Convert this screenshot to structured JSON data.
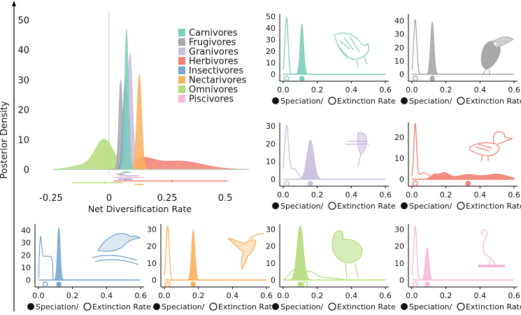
{
  "figure": {
    "ylabel": "Posterior Density",
    "main_xlabel": "Net Diversification Rate",
    "panel_legend": {
      "speciation": "Speciation/",
      "extinction": "Extinction Rate"
    }
  },
  "chart_data": [
    {
      "id": "main",
      "type": "area",
      "xlabel": "Net Diversification Rate",
      "ylabel": "Posterior Density",
      "xlim": [
        -0.28,
        0.62
      ],
      "ylim": [
        0,
        52
      ],
      "xticks": [
        -0.25,
        0,
        0.25,
        0.5
      ],
      "xtick_labels": [
        "-0.25",
        "0",
        "0.25",
        "0.5"
      ],
      "yticks": [
        0,
        10,
        20,
        30,
        40,
        50
      ],
      "legend_position": "top-right",
      "series": [
        {
          "name": "Carnivores",
          "color": "#7fcdbb",
          "peak_x": 0.075,
          "peak_density": 47,
          "interval": [
            0.055,
            0.095
          ]
        },
        {
          "name": "Frugivores",
          "color": "#a8a8a8",
          "peak_x": 0.05,
          "peak_density": 30,
          "interval": [
            0.03,
            0.07
          ]
        },
        {
          "name": "Granivores",
          "color": "#c8bedd",
          "peak_x": 0.09,
          "peak_density": 39,
          "interval": [
            0.04,
            0.13
          ]
        },
        {
          "name": "Herbivores",
          "color": "#f27f73",
          "peak_x": 0.27,
          "peak_density": 3,
          "interval": [
            0.02,
            0.51
          ]
        },
        {
          "name": "Insectivores",
          "color": "#7aa7cf",
          "peak_x": 0.07,
          "peak_density": 31,
          "interval": [
            0.04,
            0.1
          ]
        },
        {
          "name": "Nectarivores",
          "color": "#f9b25e",
          "peak_x": 0.13,
          "peak_density": 32,
          "interval": [
            0.11,
            0.15
          ]
        },
        {
          "name": "Omnivores",
          "color": "#b5dd7d",
          "peak_x": -0.02,
          "peak_density": 10,
          "interval": [
            -0.16,
            0.06
          ]
        },
        {
          "name": "Piscivores",
          "color": "#f5b8d8",
          "peak_x": 0.08,
          "peak_density": 22,
          "interval": [
            0.02,
            0.15
          ]
        }
      ]
    },
    {
      "id": "carnivores",
      "type": "area",
      "xlim": [
        -0.02,
        0.62
      ],
      "ylim": [
        0,
        52
      ],
      "xticks": [
        0,
        0.2,
        0.4,
        0.6
      ],
      "xtick_labels": [
        "0.0",
        "0.2",
        "0.4",
        "0.6"
      ],
      "yticks": [
        0,
        10,
        20,
        30,
        40,
        50
      ],
      "ytick_labels": [
        "0",
        "10",
        "20",
        "30",
        "40",
        "50"
      ],
      "color": "#7fcdbb",
      "extinction": {
        "mean": 0.02,
        "peak": 49
      },
      "speciation": {
        "mean": 0.11,
        "peak": 43
      }
    },
    {
      "id": "frugivores",
      "type": "area",
      "xlim": [
        -0.02,
        0.62
      ],
      "ylim": [
        0,
        45
      ],
      "xticks": [
        0,
        0.2,
        0.4,
        0.6
      ],
      "xtick_labels": [
        "0.0",
        "0.2",
        "0.4",
        "0.6"
      ],
      "yticks": [
        0,
        10,
        20,
        30,
        40
      ],
      "ytick_labels": [
        "0",
        "10",
        "20",
        "30",
        "40"
      ],
      "color": "#a8a8a8",
      "extinction": {
        "mean": 0.02,
        "peak": 41
      },
      "speciation": {
        "mean": 0.12,
        "peak": 39
      }
    },
    {
      "id": "granivores",
      "type": "area",
      "xlim": [
        -0.02,
        0.62
      ],
      "ylim": [
        0,
        32
      ],
      "xticks": [
        0,
        0.2,
        0.4,
        0.6
      ],
      "xtick_labels": [
        "0.0",
        "0.2",
        "0.4",
        "0.6"
      ],
      "yticks": [
        0,
        10,
        20,
        30
      ],
      "ytick_labels": [
        "0",
        "10",
        "20",
        "30"
      ],
      "color": "#c8bedd",
      "extinction": {
        "mean": 0.02,
        "peak": 29
      },
      "speciation": {
        "mean": 0.16,
        "peak": 22
      }
    },
    {
      "id": "herbivores",
      "type": "area",
      "xlim": [
        -0.02,
        0.62
      ],
      "ylim": [
        0,
        27
      ],
      "xticks": [
        0,
        0.2,
        0.4,
        0.6
      ],
      "xtick_labels": [
        "0.0",
        "0.2",
        "0.4",
        "0.6"
      ],
      "yticks": [
        0,
        10,
        20
      ],
      "ytick_labels": [
        "0",
        "10",
        "20"
      ],
      "color": "#f27f73",
      "extinction": {
        "mean": 0.02,
        "peak": 26
      },
      "speciation": {
        "mean": 0.33,
        "peak": 3
      }
    },
    {
      "id": "insectivores",
      "type": "area",
      "xlim": [
        -0.02,
        0.62
      ],
      "ylim": [
        0,
        45
      ],
      "xticks": [
        0,
        0.2,
        0.4,
        0.6
      ],
      "xtick_labels": [
        "0.0",
        "0.2",
        "0.4",
        "0.6"
      ],
      "yticks": [
        0,
        10,
        20,
        30,
        40
      ],
      "ytick_labels": [
        "0",
        "10",
        "20",
        "30",
        "40"
      ],
      "color": "#7aa7cf",
      "extinction": {
        "mean": 0.04,
        "peak": 19
      },
      "speciation": {
        "mean": 0.12,
        "peak": 42
      }
    },
    {
      "id": "nectarivores",
      "type": "area",
      "xlim": [
        -0.02,
        0.62
      ],
      "ylim": [
        0,
        33
      ],
      "xticks": [
        0,
        0.2,
        0.4,
        0.6
      ],
      "xtick_labels": [
        "0.0",
        "0.2",
        "0.4",
        "0.6"
      ],
      "yticks": [
        0,
        10,
        20,
        30
      ],
      "ytick_labels": [
        "0",
        "10",
        "20",
        "30"
      ],
      "color": "#f9b25e",
      "extinction": {
        "mean": 0.02,
        "peak": 32
      },
      "speciation": {
        "mean": 0.17,
        "peak": 29
      }
    },
    {
      "id": "omnivores",
      "type": "area",
      "xlim": [
        -0.02,
        0.62
      ],
      "ylim": [
        0,
        33
      ],
      "xticks": [
        0,
        0.2,
        0.4,
        0.6
      ],
      "xtick_labels": [
        "0.0",
        "0.2",
        "0.4",
        "0.6"
      ],
      "yticks": [
        0,
        10,
        20,
        30
      ],
      "ytick_labels": [
        "0",
        "10",
        "20",
        "30"
      ],
      "color": "#b5dd7d",
      "extinction": {
        "mean": 0.13,
        "peak": 11
      },
      "speciation": {
        "mean": 0.1,
        "peak": 32
      }
    },
    {
      "id": "piscivores",
      "type": "area",
      "xlim": [
        -0.02,
        0.62
      ],
      "ylim": [
        0,
        33
      ],
      "xticks": [
        0,
        0.2,
        0.4,
        0.6
      ],
      "xtick_labels": [
        "0.0",
        "0.2",
        "0.4",
        "0.6"
      ],
      "yticks": [
        0,
        10,
        20,
        30
      ],
      "ytick_labels": [
        "0",
        "10",
        "20",
        "30"
      ],
      "color": "#f5b8d8",
      "extinction": {
        "mean": 0.02,
        "peak": 32
      },
      "speciation": {
        "mean": 0.09,
        "peak": 19
      }
    }
  ]
}
